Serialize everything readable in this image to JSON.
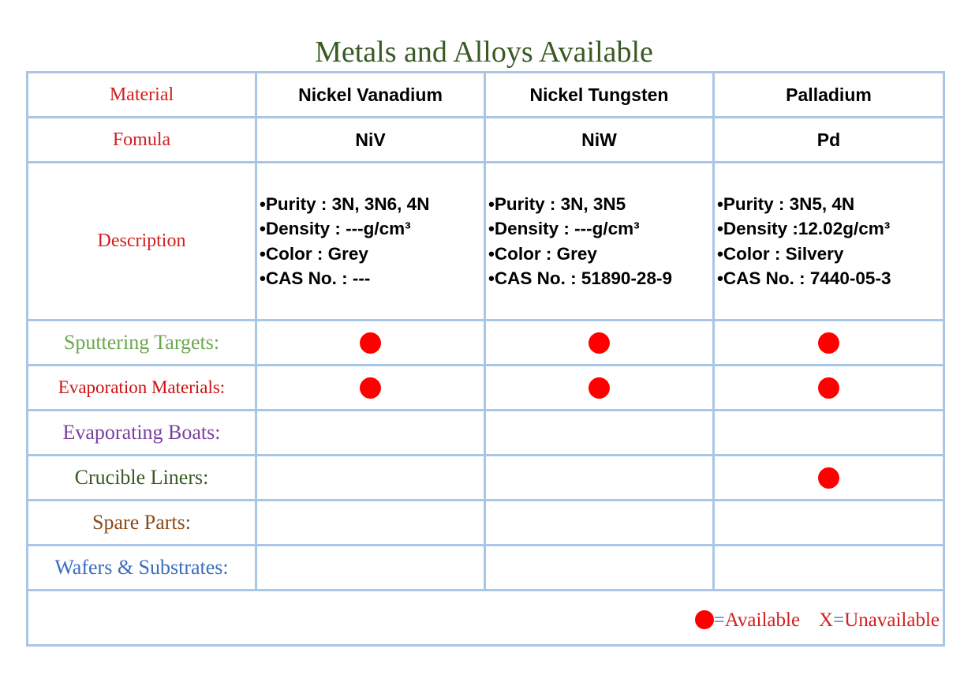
{
  "title": "Metals and Alloys Available",
  "labels": {
    "material": "Material",
    "formula": "Fomula",
    "description": "Description"
  },
  "materials": [
    {
      "name": "Nickel Vanadium",
      "formula": "NiV",
      "description": [
        "•Purity : 3N, 3N6, 4N",
        "•Density : ---g/cm³",
        "•Color : Grey",
        "•CAS No. : ---"
      ]
    },
    {
      "name": "Nickel Tungsten",
      "formula": "NiW",
      "description": [
        "•Purity : 3N, 3N5",
        "•Density : ---g/cm³",
        "•Color : Grey",
        "•CAS No. : 51890-28-9"
      ]
    },
    {
      "name": "Palladium",
      "formula": "Pd",
      "description": [
        "•Purity : 3N5, 4N",
        "•Density :12.02g/cm³",
        "•Color : Silvery",
        "•CAS No. : 7440-05-3"
      ]
    }
  ],
  "availability": [
    {
      "label": "Sputtering Targets:",
      "color": "#6aa84f",
      "available": [
        true,
        true,
        true
      ]
    },
    {
      "label": "Evaporation Materials:",
      "color": "#cc1111",
      "available": [
        true,
        true,
        true
      ]
    },
    {
      "label": "Evaporating Boats:",
      "color": "#7a3fa0",
      "available": [
        false,
        false,
        false
      ]
    },
    {
      "label": "Crucible Liners:",
      "color": "#3a5a24",
      "available": [
        false,
        false,
        true
      ]
    },
    {
      "label": "Spare Parts:",
      "color": "#8b4a17",
      "available": [
        false,
        false,
        false
      ]
    },
    {
      "label": "Wafers & Substrates:",
      "color": "#3a6cc0",
      "available": [
        false,
        false,
        false
      ]
    }
  ],
  "legend": {
    "eq1": "=",
    "available": "Available",
    "x": "X",
    "eq2": "=",
    "unavailable": "Unavailable"
  },
  "colors": {
    "grid_border": "#a9c6e6",
    "dot": "#ff0000",
    "title": "#3a5a24",
    "label_red": "#d21f1f"
  }
}
